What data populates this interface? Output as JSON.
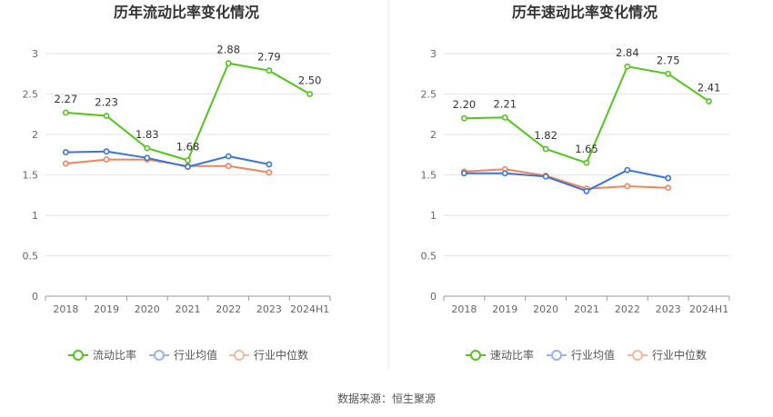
{
  "source_label": "数据来源：恒生聚源",
  "colors": {
    "main": "#52c41a",
    "avg": "#3a73d9",
    "median": "#f0845c"
  },
  "legend_icons": [
    "circle-line-icon",
    "circle-line-icon",
    "circle-line-icon"
  ],
  "chart_data": [
    {
      "type": "line",
      "title": "历年流动比率变化情况",
      "categories": [
        "2018",
        "2019",
        "2020",
        "2021",
        "2022",
        "2023",
        "2024H1"
      ],
      "ylim": [
        0,
        3
      ],
      "yticks": [
        "0",
        "0.5",
        "1",
        "1.5",
        "2",
        "2.5",
        "3"
      ],
      "grid": true,
      "legend_position": "bottom",
      "series": [
        {
          "name": "流动比率",
          "values": [
            2.27,
            2.23,
            1.83,
            1.68,
            2.88,
            2.79,
            2.5
          ],
          "labels": [
            "2.27",
            "2.23",
            "1.83",
            "1.68",
            "2.88",
            "2.79",
            "2.50"
          ]
        },
        {
          "name": "行业均值",
          "values": [
            1.78,
            1.79,
            1.71,
            1.6,
            1.73,
            1.63,
            null
          ]
        },
        {
          "name": "行业中位数",
          "values": [
            1.64,
            1.69,
            1.69,
            1.61,
            1.61,
            1.53,
            null
          ]
        }
      ]
    },
    {
      "type": "line",
      "title": "历年速动比率变化情况",
      "categories": [
        "2018",
        "2019",
        "2020",
        "2021",
        "2022",
        "2023",
        "2024H1"
      ],
      "ylim": [
        0,
        3
      ],
      "yticks": [
        "0",
        "0.5",
        "1",
        "1.5",
        "2",
        "2.5",
        "3"
      ],
      "grid": true,
      "legend_position": "bottom",
      "series": [
        {
          "name": "速动比率",
          "values": [
            2.2,
            2.21,
            1.82,
            1.65,
            2.84,
            2.75,
            2.41
          ],
          "labels": [
            "2.20",
            "2.21",
            "1.82",
            "1.65",
            "2.84",
            "2.75",
            "2.41"
          ]
        },
        {
          "name": "行业均值",
          "values": [
            1.52,
            1.52,
            1.48,
            1.3,
            1.56,
            1.46,
            null
          ]
        },
        {
          "name": "行业中位数",
          "values": [
            1.54,
            1.57,
            1.49,
            1.33,
            1.36,
            1.34,
            null
          ]
        }
      ]
    }
  ]
}
